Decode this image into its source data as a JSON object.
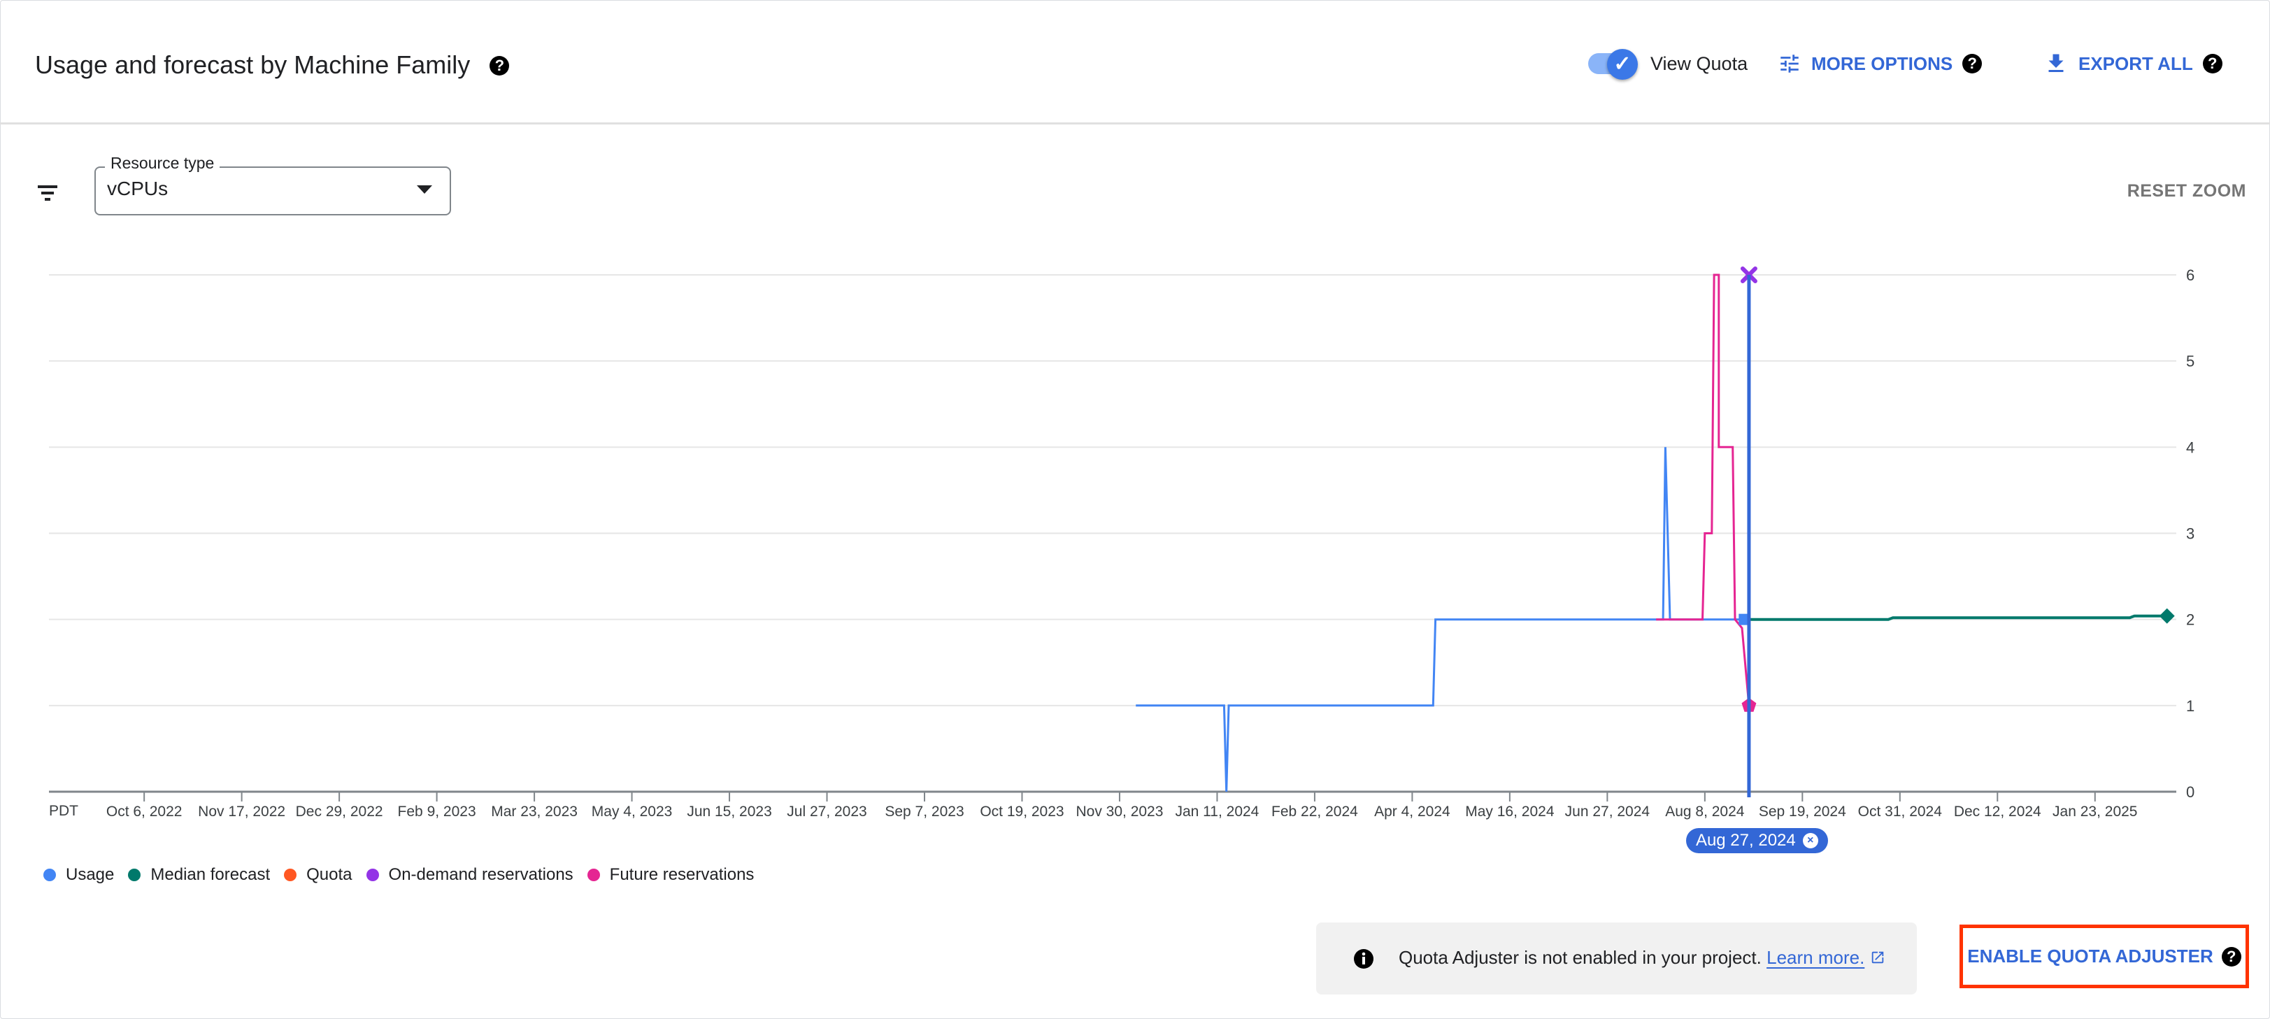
{
  "header": {
    "title": "Usage and forecast by Machine Family",
    "view_quota_label": "View Quota",
    "view_quota_on": true,
    "more_options_label": "MORE OPTIONS",
    "export_all_label": "EXPORT ALL",
    "help_glyph": "?"
  },
  "controls": {
    "filter_icon": "filter-list-icon",
    "resource_type_label": "Resource type",
    "resource_type_value": "vCPUs",
    "reset_zoom_label": "RESET ZOOM"
  },
  "cursor": {
    "date": "2024-08-27",
    "label": "Aug 27, 2024",
    "close_glyph": "×"
  },
  "info": {
    "message": "Quota Adjuster is not enabled in your project.",
    "link_label": "Learn more.",
    "enable_label": "ENABLE QUOTA ADJUSTER"
  },
  "colors": {
    "accent": "#3367d6",
    "usage": "#4285f4",
    "median_forecast": "#00796b",
    "quota": "#ff5722",
    "on_demand": "#9334e6",
    "future": "#e52592",
    "highlight_border": "#ff3300"
  },
  "chart_data": {
    "type": "line",
    "title": "",
    "xlabel": "",
    "ylabel": "",
    "timezone_label": "PDT",
    "x_type": "date",
    "xlim": [
      "2022-08-26",
      "2025-02-27"
    ],
    "ylim": [
      0,
      6
    ],
    "y_ticks": [
      0,
      1,
      2,
      3,
      4,
      5,
      6
    ],
    "x_ticks": [
      {
        "date": "2022-10-06",
        "label": "Oct 6, 2022"
      },
      {
        "date": "2022-11-17",
        "label": "Nov 17, 2022"
      },
      {
        "date": "2022-12-29",
        "label": "Dec 29, 2022"
      },
      {
        "date": "2023-02-09",
        "label": "Feb 9, 2023"
      },
      {
        "date": "2023-03-23",
        "label": "Mar 23, 2023"
      },
      {
        "date": "2023-05-04",
        "label": "May 4, 2023"
      },
      {
        "date": "2023-06-15",
        "label": "Jun 15, 2023"
      },
      {
        "date": "2023-07-27",
        "label": "Jul 27, 2023"
      },
      {
        "date": "2023-09-07",
        "label": "Sep 7, 2023"
      },
      {
        "date": "2023-10-19",
        "label": "Oct 19, 2023"
      },
      {
        "date": "2023-11-30",
        "label": "Nov 30, 2023"
      },
      {
        "date": "2024-01-11",
        "label": "Jan 11, 2024"
      },
      {
        "date": "2024-02-22",
        "label": "Feb 22, 2024"
      },
      {
        "date": "2024-04-04",
        "label": "Apr 4, 2024"
      },
      {
        "date": "2024-05-16",
        "label": "May 16, 2024"
      },
      {
        "date": "2024-06-27",
        "label": "Jun 27, 2024"
      },
      {
        "date": "2024-08-08",
        "label": "Aug 8, 2024"
      },
      {
        "date": "2024-09-19",
        "label": "Sep 19, 2024"
      },
      {
        "date": "2024-10-31",
        "label": "Oct 31, 2024"
      },
      {
        "date": "2024-12-12",
        "label": "Dec 12, 2024"
      },
      {
        "date": "2025-01-23",
        "label": "Jan 23, 2025"
      }
    ],
    "grid": true,
    "legend_position": "bottom-left",
    "series": [
      {
        "name": "Usage",
        "color": "#4285f4",
        "marker": "square",
        "points": [
          [
            "2023-12-07",
            1
          ],
          [
            "2024-01-14",
            1
          ],
          [
            "2024-01-15",
            0
          ],
          [
            "2024-01-16",
            1
          ],
          [
            "2024-04-13",
            1
          ],
          [
            "2024-04-14",
            2
          ],
          [
            "2024-07-21",
            2
          ],
          [
            "2024-07-22",
            4
          ],
          [
            "2024-07-24",
            2
          ],
          [
            "2024-08-25",
            2
          ]
        ]
      },
      {
        "name": "Median forecast",
        "color": "#00796b",
        "marker": "diamond",
        "points": [
          [
            "2024-08-27",
            2
          ],
          [
            "2024-10-26",
            2
          ],
          [
            "2024-10-28",
            2.02
          ],
          [
            "2025-02-07",
            2.02
          ],
          [
            "2025-02-09",
            2.04
          ],
          [
            "2025-02-23",
            2.04
          ]
        ]
      },
      {
        "name": "Quota",
        "color": "#ff5722",
        "marker": "none",
        "points": []
      },
      {
        "name": "On-demand reservations",
        "color": "#9334e6",
        "marker": "cross",
        "points": [
          [
            "2024-08-27",
            6
          ]
        ]
      },
      {
        "name": "Future reservations",
        "color": "#e52592",
        "marker": "pentagon",
        "points": [
          [
            "2024-07-18",
            2
          ],
          [
            "2024-08-07",
            2
          ],
          [
            "2024-08-08",
            3
          ],
          [
            "2024-08-11",
            3
          ],
          [
            "2024-08-12",
            6
          ],
          [
            "2024-08-14",
            6
          ],
          [
            "2024-08-14",
            4
          ],
          [
            "2024-08-20",
            4
          ],
          [
            "2024-08-21",
            2
          ],
          [
            "2024-08-24",
            1.9
          ],
          [
            "2024-08-27",
            1
          ]
        ]
      }
    ]
  }
}
